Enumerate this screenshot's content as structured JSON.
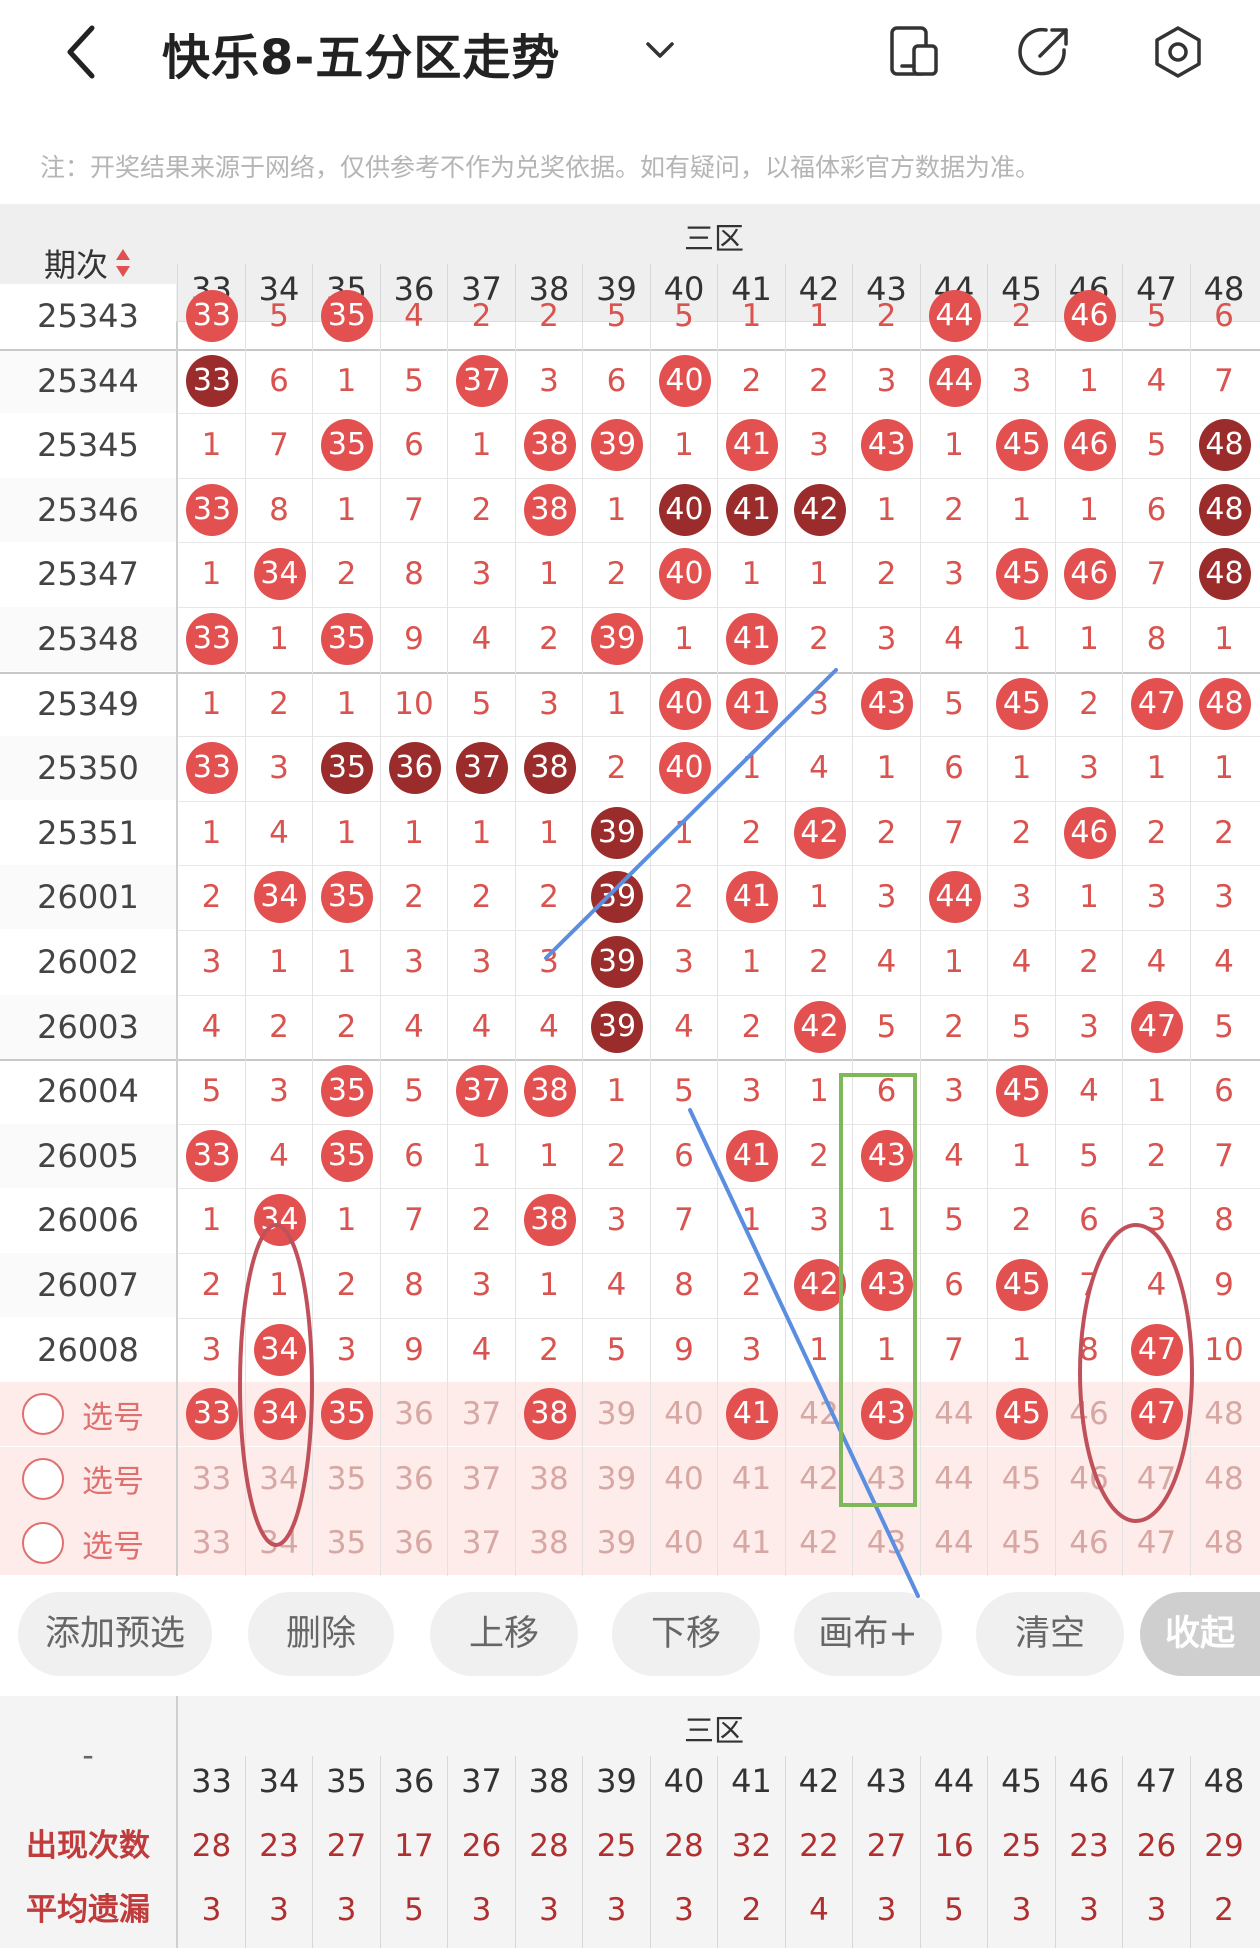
{
  "header": {
    "title": "快乐8-五分区走势",
    "back_icon": "back-arrow-icon",
    "dropdown_icon": "chevron-down-icon",
    "actions": [
      "phone-icon",
      "share-icon",
      "settings-hex-icon"
    ]
  },
  "note": "注：开奖结果来源于网络，仅供参考不作为兑奖依据。如有疑问，以福体彩官方数据为准。",
  "table": {
    "period_label": "期次",
    "zone_title": "三区",
    "columns": [
      "33",
      "34",
      "35",
      "36",
      "37",
      "38",
      "39",
      "40",
      "41",
      "42",
      "43",
      "44",
      "45",
      "46",
      "47",
      "48"
    ],
    "rows": [
      {
        "period": "25343",
        "cells": [
          "r:33",
          "5",
          "r:35",
          "4",
          "2",
          "2",
          "5",
          "5",
          "1",
          "1",
          "2",
          "r:44",
          "2",
          "r:46",
          "5",
          "6"
        ]
      },
      {
        "period": "25344",
        "cells": [
          "d:33",
          "6",
          "1",
          "5",
          "r:37",
          "3",
          "6",
          "r:40",
          "2",
          "2",
          "3",
          "r:44",
          "3",
          "1",
          "4",
          "7"
        ]
      },
      {
        "period": "25345",
        "cells": [
          "1",
          "7",
          "r:35",
          "6",
          "1",
          "r:38",
          "r:39",
          "1",
          "r:41",
          "3",
          "r:43",
          "1",
          "r:45",
          "r:46",
          "5",
          "d:48"
        ]
      },
      {
        "period": "25346",
        "cells": [
          "r:33",
          "8",
          "1",
          "7",
          "2",
          "r:38",
          "1",
          "d:40",
          "d:41",
          "d:42",
          "1",
          "2",
          "1",
          "1",
          "6",
          "d:48"
        ]
      },
      {
        "period": "25347",
        "cells": [
          "1",
          "r:34",
          "2",
          "8",
          "3",
          "1",
          "2",
          "r:40",
          "1",
          "1",
          "2",
          "3",
          "r:45",
          "r:46",
          "7",
          "d:48"
        ]
      },
      {
        "period": "25348",
        "cells": [
          "r:33",
          "1",
          "r:35",
          "9",
          "4",
          "2",
          "r:39",
          "1",
          "r:41",
          "2",
          "3",
          "4",
          "1",
          "1",
          "8",
          "1"
        ]
      },
      {
        "period": "25349",
        "cells": [
          "1",
          "2",
          "1",
          "10",
          "5",
          "3",
          "1",
          "r:40",
          "r:41",
          "3",
          "r:43",
          "5",
          "r:45",
          "2",
          "r:47",
          "r:48"
        ]
      },
      {
        "period": "25350",
        "cells": [
          "r:33",
          "3",
          "d:35",
          "d:36",
          "d:37",
          "d:38",
          "2",
          "r:40",
          "1",
          "4",
          "1",
          "6",
          "1",
          "3",
          "1",
          "1"
        ]
      },
      {
        "period": "25351",
        "cells": [
          "1",
          "4",
          "1",
          "1",
          "1",
          "1",
          "d:39",
          "1",
          "2",
          "r:42",
          "2",
          "7",
          "2",
          "r:46",
          "2",
          "2"
        ]
      },
      {
        "period": "26001",
        "cells": [
          "2",
          "r:34",
          "r:35",
          "2",
          "2",
          "2",
          "d:39",
          "2",
          "r:41",
          "1",
          "3",
          "r:44",
          "3",
          "1",
          "3",
          "3"
        ]
      },
      {
        "period": "26002",
        "cells": [
          "3",
          "1",
          "1",
          "3",
          "3",
          "3",
          "d:39",
          "3",
          "1",
          "2",
          "4",
          "1",
          "4",
          "2",
          "4",
          "4"
        ]
      },
      {
        "period": "26003",
        "cells": [
          "4",
          "2",
          "2",
          "4",
          "4",
          "4",
          "d:39",
          "4",
          "2",
          "r:42",
          "5",
          "2",
          "5",
          "3",
          "r:47",
          "5"
        ]
      },
      {
        "period": "26004",
        "cells": [
          "5",
          "3",
          "r:35",
          "5",
          "r:37",
          "r:38",
          "1",
          "5",
          "3",
          "1",
          "6",
          "3",
          "r:45",
          "4",
          "1",
          "6"
        ]
      },
      {
        "period": "26005",
        "cells": [
          "r:33",
          "4",
          "r:35",
          "6",
          "1",
          "1",
          "2",
          "6",
          "r:41",
          "2",
          "r:43",
          "4",
          "1",
          "5",
          "2",
          "7"
        ]
      },
      {
        "period": "26006",
        "cells": [
          "1",
          "r:34",
          "1",
          "7",
          "2",
          "r:38",
          "3",
          "7",
          "1",
          "3",
          "1",
          "5",
          "2",
          "6",
          "3",
          "8"
        ]
      },
      {
        "period": "26007",
        "cells": [
          "2",
          "1",
          "2",
          "8",
          "3",
          "1",
          "4",
          "8",
          "2",
          "r:42",
          "r:43",
          "6",
          "r:45",
          "7",
          "4",
          "9"
        ]
      },
      {
        "period": "26008",
        "cells": [
          "3",
          "r:34",
          "3",
          "9",
          "4",
          "2",
          "5",
          "9",
          "3",
          "1",
          "1",
          "7",
          "1",
          "8",
          "r:47",
          "10"
        ]
      }
    ],
    "select_label": "选号",
    "select_rows": [
      [
        "r:33",
        "r:34",
        "r:35",
        "36",
        "37",
        "r:38",
        "39",
        "40",
        "r:41",
        "42",
        "r:43",
        "44",
        "r:45",
        "46",
        "r:47",
        "48"
      ],
      [
        "33",
        "34",
        "35",
        "36",
        "37",
        "38",
        "39",
        "40",
        "41",
        "42",
        "43",
        "44",
        "45",
        "46",
        "47",
        "48"
      ],
      [
        "33",
        "34",
        "35",
        "36",
        "37",
        "38",
        "39",
        "40",
        "41",
        "42",
        "43",
        "44",
        "45",
        "46",
        "47",
        "48"
      ]
    ]
  },
  "toolbar": {
    "buttons": [
      "添加预选",
      "删除",
      "上移",
      "下移",
      "画布+",
      "清空"
    ],
    "collapse": "收起"
  },
  "stats": {
    "dash": "-",
    "zone_title": "三区",
    "rows": [
      {
        "label": "出现次数",
        "values": [
          "28",
          "23",
          "27",
          "17",
          "26",
          "28",
          "25",
          "28",
          "32",
          "22",
          "27",
          "16",
          "25",
          "23",
          "26",
          "29"
        ]
      },
      {
        "label": "平均遗漏",
        "values": [
          "3",
          "3",
          "3",
          "5",
          "3",
          "3",
          "3",
          "3",
          "2",
          "4",
          "3",
          "5",
          "3",
          "3",
          "3",
          "2"
        ]
      }
    ]
  },
  "colors": {
    "ball_red": "#e25050",
    "ball_dark": "#9b2c2c",
    "miss_text": "#d9534f",
    "annotation_blue": "#5b8ee0",
    "annotation_green": "#7fb85a",
    "annotation_red": "#c0505a"
  }
}
